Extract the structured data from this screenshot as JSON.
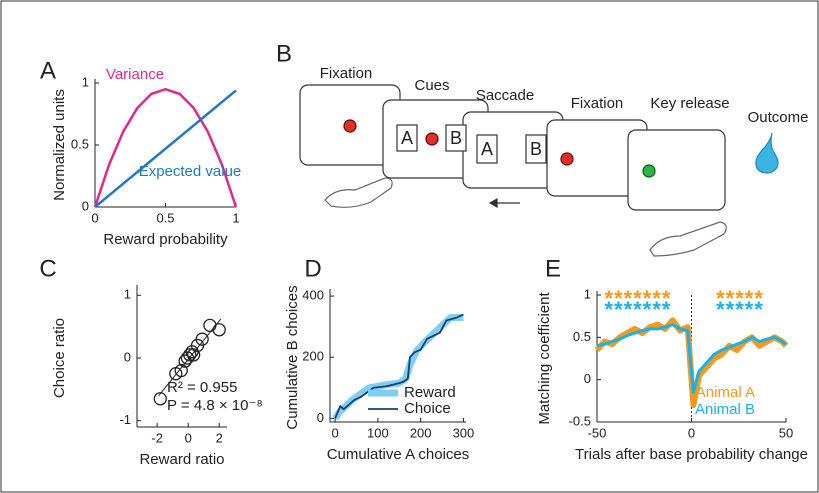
{
  "panel_b": {
    "panel_label": "B",
    "steps": [
      "Fixation",
      "Cues",
      "Saccade",
      "Fixation",
      "Key release",
      "Outcome"
    ],
    "targets": [
      "A",
      "B"
    ]
  },
  "chart_data": [
    {
      "panel_label": "A",
      "type": "line",
      "xlabel": "Reward probability",
      "ylabel": "Normalized units",
      "x": [
        0,
        0.1,
        0.2,
        0.3,
        0.4,
        0.5,
        0.6,
        0.7,
        0.8,
        0.9,
        1
      ],
      "series": [
        {
          "name": "Variance",
          "color": "#e0288c",
          "values": [
            0,
            0.342,
            0.608,
            0.798,
            0.912,
            0.95,
            0.912,
            0.798,
            0.608,
            0.342,
            0
          ]
        },
        {
          "name": "Expected value",
          "color": "#1f78c1",
          "values": [
            0,
            0.094,
            0.188,
            0.282,
            0.376,
            0.47,
            0.564,
            0.658,
            0.752,
            0.846,
            0.94
          ]
        }
      ],
      "xlim": [
        0,
        1
      ],
      "ylim": [
        0,
        1
      ],
      "xticks": [
        0,
        0.5,
        1
      ],
      "yticks": [
        0,
        0.5,
        1
      ]
    },
    {
      "panel_label": "C",
      "type": "scatter",
      "xlabel": "Reward ratio",
      "ylabel": "Choice ratio",
      "x": [
        -1.8,
        -0.8,
        -0.45,
        -0.2,
        -0.05,
        0.1,
        0.25,
        0.35,
        0.6,
        0.9,
        1.4,
        2.0
      ],
      "values": [
        -0.65,
        -0.25,
        -0.2,
        -0.05,
        0.0,
        0.05,
        0.1,
        0.05,
        0.2,
        0.3,
        0.52,
        0.45
      ],
      "fit": {
        "x": [
          -1.9,
          2.1
        ],
        "values": [
          -0.6,
          0.62
        ]
      },
      "annotations": [
        "R² = 0.955",
        "P = 4.8 × 10⁻⁸"
      ],
      "xlim": [
        -3.3,
        2.5
      ],
      "ylim": [
        -1.1,
        1.1
      ],
      "xticks": [
        -2,
        0,
        2
      ],
      "yticks": [
        -1,
        0,
        1
      ]
    },
    {
      "panel_label": "D",
      "type": "line",
      "xlabel": "Cumulative A choices",
      "ylabel": "Cumulative B choices",
      "series": [
        {
          "name": "Reward",
          "color": "#7fd0f0",
          "x": [
            0,
            10,
            25,
            40,
            60,
            80,
            120,
            150,
            165,
            175,
            190,
            210,
            240,
            270,
            300
          ],
          "values": [
            0,
            20,
            40,
            60,
            80,
            100,
            110,
            115,
            130,
            175,
            220,
            250,
            290,
            330,
            330
          ]
        },
        {
          "name": "Choice",
          "color": "#1b3a7a",
          "x": [
            0,
            12,
            20,
            45,
            60,
            90,
            120,
            150,
            160,
            170,
            175,
            185,
            200,
            215,
            245,
            260,
            285,
            300
          ],
          "values": [
            0,
            40,
            30,
            60,
            70,
            100,
            105,
            115,
            120,
            130,
            200,
            215,
            225,
            260,
            280,
            320,
            330,
            340
          ]
        }
      ],
      "xlim": [
        -12,
        306
      ],
      "ylim": [
        -12,
        410
      ],
      "xticks": [
        0,
        100,
        200,
        300
      ],
      "yticks": [
        0,
        200,
        400
      ]
    },
    {
      "panel_label": "E",
      "type": "line",
      "xlabel": "Trials after base probability change",
      "ylabel": "Matching coefficient",
      "x": [
        -50,
        -46,
        -42,
        -38,
        -34,
        -30,
        -26,
        -22,
        -18,
        -14,
        -10,
        -6,
        -2,
        1,
        4,
        8,
        12,
        16,
        20,
        24,
        28,
        32,
        36,
        40,
        44,
        48,
        50
      ],
      "series": [
        {
          "name": "Animal A",
          "color": "#f39a1e",
          "stars": [
            "*******",
            "*****"
          ],
          "values": [
            0.35,
            0.45,
            0.42,
            0.5,
            0.55,
            0.6,
            0.55,
            0.62,
            0.65,
            0.6,
            0.7,
            0.58,
            0.62,
            -0.3,
            0.05,
            0.15,
            0.25,
            0.3,
            0.4,
            0.35,
            0.45,
            0.5,
            0.4,
            0.45,
            0.5,
            0.45,
            0.4
          ]
        },
        {
          "name": "Animal B",
          "color": "#19b2e8",
          "stars": [
            "*******",
            "*****"
          ],
          "values": [
            0.4,
            0.42,
            0.45,
            0.48,
            0.52,
            0.55,
            0.58,
            0.6,
            0.6,
            0.62,
            0.65,
            0.6,
            0.58,
            -0.15,
            0.1,
            0.2,
            0.3,
            0.35,
            0.38,
            0.42,
            0.45,
            0.5,
            0.45,
            0.48,
            0.5,
            0.45,
            0.42
          ]
        }
      ],
      "vline": 0,
      "xlim": [
        -50,
        50
      ],
      "ylim": [
        -0.5,
        1
      ],
      "xticks": [
        -50,
        0,
        50
      ],
      "yticks": [
        -0.5,
        0,
        0.5,
        1
      ]
    }
  ]
}
